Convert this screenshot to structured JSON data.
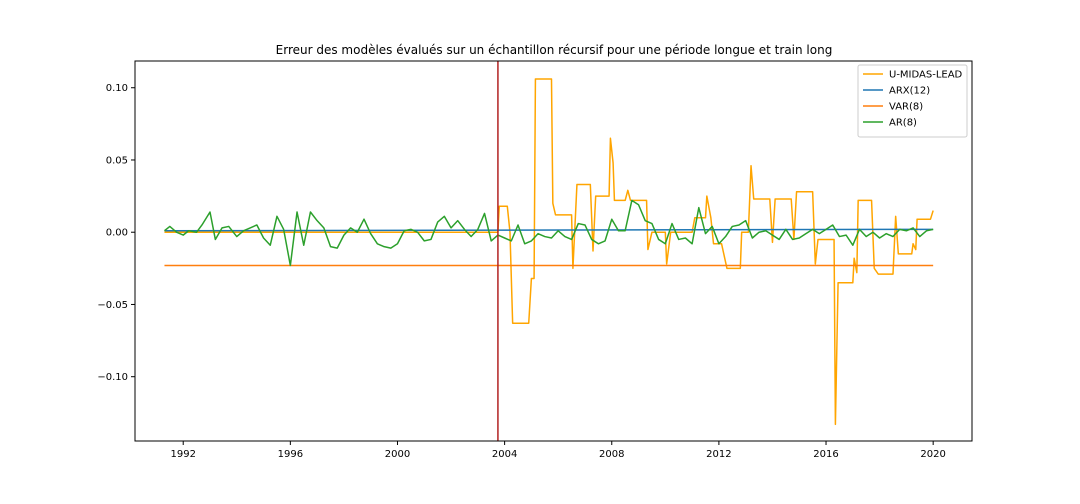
{
  "chart_data": {
    "type": "line",
    "title": "Erreur des modèles évalués sur un échantillon récursif pour une période longue et train long",
    "xlabel": "",
    "ylabel": "",
    "xlim": [
      1990.2,
      2021.45
    ],
    "ylim": [
      -0.1445,
      0.1185
    ],
    "x_ticks": [
      1992,
      1996,
      2000,
      2004,
      2008,
      2012,
      2016,
      2020
    ],
    "x_tick_labels": [
      "1992",
      "1996",
      "2000",
      "2004",
      "2008",
      "2012",
      "2016",
      "2020"
    ],
    "y_ticks": [
      0.1,
      0.05,
      0.0,
      -0.05,
      -0.1
    ],
    "y_tick_labels": [
      "0.10",
      "0.05",
      "0.00",
      "−0.05",
      "−0.10"
    ],
    "vline": {
      "x": 2003.75,
      "color": "#b22222"
    },
    "legend_position": "upper-right",
    "grid": false,
    "series": [
      {
        "name": "U-MIDAS-LEAD",
        "color": "#ffa500",
        "step": true,
        "points": [
          [
            1991.3,
            0.0
          ],
          [
            2003.75,
            0.0
          ],
          [
            2003.8,
            0.018
          ],
          [
            2004.1,
            0.018
          ],
          [
            2004.2,
            0.0
          ],
          [
            2004.3,
            -0.063
          ],
          [
            2004.9,
            -0.063
          ],
          [
            2005.0,
            -0.032
          ],
          [
            2005.1,
            -0.032
          ],
          [
            2005.15,
            0.106
          ],
          [
            2005.75,
            0.106
          ],
          [
            2005.8,
            0.02
          ],
          [
            2005.9,
            0.012
          ],
          [
            2006.5,
            0.012
          ],
          [
            2006.55,
            -0.025
          ],
          [
            2006.7,
            0.033
          ],
          [
            2007.2,
            0.033
          ],
          [
            2007.3,
            -0.013
          ],
          [
            2007.4,
            0.025
          ],
          [
            2007.9,
            0.025
          ],
          [
            2007.95,
            0.065
          ],
          [
            2008.05,
            0.048
          ],
          [
            2008.1,
            0.022
          ],
          [
            2008.5,
            0.022
          ],
          [
            2008.6,
            0.029
          ],
          [
            2008.7,
            0.022
          ],
          [
            2009.3,
            0.022
          ],
          [
            2009.35,
            -0.012
          ],
          [
            2009.5,
            0.0
          ],
          [
            2010.0,
            0.0
          ],
          [
            2010.05,
            -0.022
          ],
          [
            2010.2,
            0.0
          ],
          [
            2011.0,
            0.0
          ],
          [
            2011.1,
            0.01
          ],
          [
            2011.5,
            0.01
          ],
          [
            2011.55,
            0.025
          ],
          [
            2011.7,
            0.01
          ],
          [
            2011.8,
            -0.008
          ],
          [
            2012.1,
            -0.008
          ],
          [
            2012.3,
            -0.025
          ],
          [
            2012.8,
            -0.025
          ],
          [
            2012.85,
            0.0
          ],
          [
            2013.1,
            0.0
          ],
          [
            2013.2,
            0.046
          ],
          [
            2013.3,
            0.023
          ],
          [
            2013.9,
            0.023
          ],
          [
            2014.0,
            -0.007
          ],
          [
            2014.1,
            0.023
          ],
          [
            2014.7,
            0.023
          ],
          [
            2014.8,
            -0.005
          ],
          [
            2014.9,
            0.028
          ],
          [
            2015.5,
            0.028
          ],
          [
            2015.6,
            -0.022
          ],
          [
            2015.7,
            -0.005
          ],
          [
            2016.3,
            -0.005
          ],
          [
            2016.35,
            -0.133
          ],
          [
            2016.45,
            -0.035
          ],
          [
            2017.0,
            -0.035
          ],
          [
            2017.05,
            -0.018
          ],
          [
            2017.15,
            -0.028
          ],
          [
            2017.2,
            0.022
          ],
          [
            2017.7,
            0.022
          ],
          [
            2017.8,
            -0.025
          ],
          [
            2017.95,
            -0.029
          ],
          [
            2018.5,
            -0.029
          ],
          [
            2018.6,
            0.011
          ],
          [
            2018.7,
            -0.015
          ],
          [
            2019.2,
            -0.015
          ],
          [
            2019.25,
            -0.008
          ],
          [
            2019.35,
            -0.012
          ],
          [
            2019.4,
            0.009
          ],
          [
            2019.9,
            0.009
          ],
          [
            2020.0,
            0.015
          ]
        ]
      },
      {
        "name": "ARX(12)",
        "color": "#1f77b4",
        "step": false,
        "points": [
          [
            1991.3,
            0.001
          ],
          [
            2020.0,
            0.002
          ]
        ]
      },
      {
        "name": "VAR(8)",
        "color": "#ff7f0e",
        "step": false,
        "points": [
          [
            1991.3,
            -0.023
          ],
          [
            2020.0,
            -0.023
          ]
        ]
      },
      {
        "name": "AR(8)",
        "color": "#2ca02c",
        "step": true,
        "points": [
          [
            1991.3,
            0.001
          ],
          [
            1991.5,
            0.004
          ],
          [
            1991.75,
            0.0
          ],
          [
            1992.0,
            -0.002
          ],
          [
            1992.2,
            0.001
          ],
          [
            1992.5,
            0.0
          ],
          [
            1992.7,
            0.005
          ],
          [
            1993.0,
            0.014
          ],
          [
            1993.2,
            -0.005
          ],
          [
            1993.45,
            0.003
          ],
          [
            1993.7,
            0.004
          ],
          [
            1994.0,
            -0.003
          ],
          [
            1994.25,
            0.001
          ],
          [
            1994.5,
            0.003
          ],
          [
            1994.75,
            0.005
          ],
          [
            1995.0,
            -0.004
          ],
          [
            1995.25,
            -0.009
          ],
          [
            1995.5,
            0.011
          ],
          [
            1995.75,
            0.002
          ],
          [
            1996.0,
            -0.023
          ],
          [
            1996.25,
            0.014
          ],
          [
            1996.5,
            -0.009
          ],
          [
            1996.75,
            0.014
          ],
          [
            1997.0,
            0.008
          ],
          [
            1997.25,
            0.003
          ],
          [
            1997.5,
            -0.01
          ],
          [
            1997.75,
            -0.011
          ],
          [
            1998.0,
            -0.002
          ],
          [
            1998.25,
            0.003
          ],
          [
            1998.5,
            0.0
          ],
          [
            1998.75,
            0.009
          ],
          [
            1999.0,
            -0.001
          ],
          [
            1999.25,
            -0.008
          ],
          [
            1999.5,
            -0.01
          ],
          [
            1999.75,
            -0.011
          ],
          [
            2000.0,
            -0.008
          ],
          [
            2000.25,
            0.001
          ],
          [
            2000.5,
            0.002
          ],
          [
            2000.75,
            0.0
          ],
          [
            2001.0,
            -0.006
          ],
          [
            2001.25,
            -0.005
          ],
          [
            2001.5,
            0.007
          ],
          [
            2001.75,
            0.011
          ],
          [
            2002.0,
            0.003
          ],
          [
            2002.25,
            0.008
          ],
          [
            2002.5,
            0.002
          ],
          [
            2002.75,
            -0.003
          ],
          [
            2003.0,
            0.002
          ],
          [
            2003.25,
            0.013
          ],
          [
            2003.5,
            -0.006
          ],
          [
            2003.75,
            -0.002
          ],
          [
            2004.0,
            -0.004
          ],
          [
            2004.25,
            -0.006
          ],
          [
            2004.5,
            0.005
          ],
          [
            2004.75,
            -0.008
          ],
          [
            2005.0,
            -0.006
          ],
          [
            2005.25,
            -0.001
          ],
          [
            2005.5,
            -0.003
          ],
          [
            2005.75,
            -0.004
          ],
          [
            2006.0,
            0.001
          ],
          [
            2006.25,
            -0.003
          ],
          [
            2006.5,
            -0.005
          ],
          [
            2006.75,
            0.006
          ],
          [
            2007.0,
            0.005
          ],
          [
            2007.25,
            -0.005
          ],
          [
            2007.5,
            -0.008
          ],
          [
            2007.75,
            -0.006
          ],
          [
            2008.0,
            0.009
          ],
          [
            2008.25,
            0.001
          ],
          [
            2008.5,
            0.001
          ],
          [
            2008.75,
            0.022
          ],
          [
            2009.0,
            0.019
          ],
          [
            2009.25,
            0.008
          ],
          [
            2009.5,
            0.006
          ],
          [
            2009.75,
            -0.005
          ],
          [
            2010.0,
            -0.008
          ],
          [
            2010.25,
            0.006
          ],
          [
            2010.5,
            -0.005
          ],
          [
            2010.75,
            -0.004
          ],
          [
            2011.0,
            -0.008
          ],
          [
            2011.25,
            0.017
          ],
          [
            2011.5,
            -0.001
          ],
          [
            2011.75,
            0.004
          ],
          [
            2012.0,
            -0.008
          ],
          [
            2012.25,
            -0.003
          ],
          [
            2012.5,
            0.004
          ],
          [
            2012.75,
            0.005
          ],
          [
            2013.0,
            0.008
          ],
          [
            2013.25,
            -0.004
          ],
          [
            2013.5,
            0.0
          ],
          [
            2013.75,
            0.001
          ],
          [
            2014.0,
            -0.002
          ],
          [
            2014.25,
            -0.005
          ],
          [
            2014.5,
            0.002
          ],
          [
            2014.75,
            -0.005
          ],
          [
            2015.0,
            -0.004
          ],
          [
            2015.25,
            -0.001
          ],
          [
            2015.5,
            0.002
          ],
          [
            2015.75,
            -0.001
          ],
          [
            2016.0,
            0.002
          ],
          [
            2016.25,
            0.005
          ],
          [
            2016.5,
            -0.003
          ],
          [
            2016.75,
            -0.002
          ],
          [
            2017.0,
            -0.009
          ],
          [
            2017.25,
            0.002
          ],
          [
            2017.5,
            -0.003
          ],
          [
            2017.75,
            0.0
          ],
          [
            2018.0,
            -0.004
          ],
          [
            2018.25,
            -0.001
          ],
          [
            2018.5,
            -0.003
          ],
          [
            2018.75,
            0.002
          ],
          [
            2019.0,
            0.001
          ],
          [
            2019.25,
            0.003
          ],
          [
            2019.5,
            -0.003
          ],
          [
            2019.75,
            0.001
          ],
          [
            2020.0,
            0.002
          ]
        ]
      }
    ]
  }
}
